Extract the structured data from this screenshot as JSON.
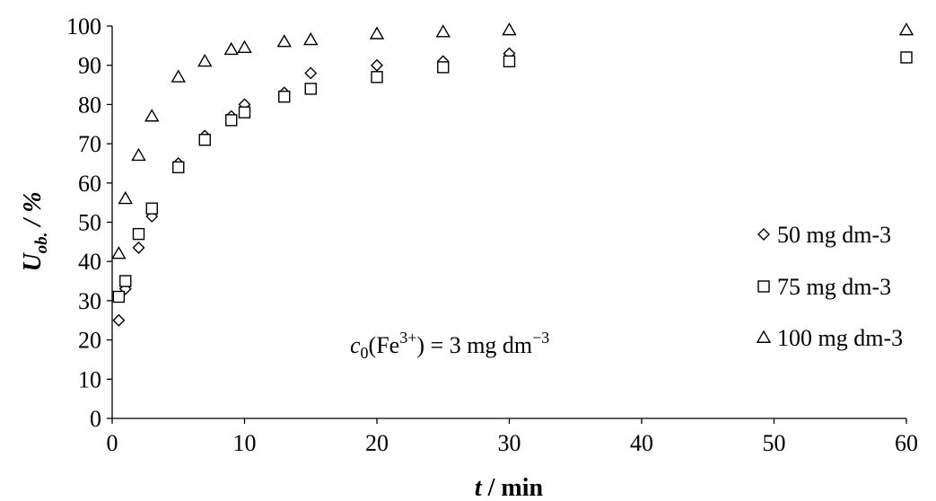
{
  "chart_data": {
    "type": "scatter",
    "xlabel": {
      "main": "t",
      "rest": " / min"
    },
    "ylabel": {
      "main": "U",
      "sub": "ob.",
      "rest": " / %"
    },
    "xlim": [
      0,
      60
    ],
    "ylim": [
      0,
      100
    ],
    "xticks": [
      "0",
      "10",
      "20",
      "30",
      "40",
      "50",
      "60"
    ],
    "yticks": [
      "0",
      "10",
      "20",
      "30",
      "40",
      "50",
      "60",
      "70",
      "80",
      "90",
      "100"
    ],
    "grid": false,
    "legend_position": "right",
    "annotation": {
      "c": "c",
      "sub0": "0",
      "open": "(Fe",
      "charge": "3+",
      "close": ") = 3 mg dm",
      "exp": "−3"
    },
    "series": [
      {
        "name": "50 mg dm-3",
        "marker": "diamond",
        "x": [
          0.5,
          1,
          2,
          3,
          5,
          7,
          9,
          10,
          13,
          15,
          20,
          25,
          30,
          60
        ],
        "y": [
          25,
          33,
          43.5,
          51.5,
          65,
          72,
          77,
          80,
          83,
          88,
          90,
          91,
          93,
          92
        ]
      },
      {
        "name": "75 mg dm-3",
        "marker": "square",
        "x": [
          0.5,
          1,
          2,
          3,
          5,
          7,
          9,
          10,
          13,
          15,
          20,
          25,
          30,
          60
        ],
        "y": [
          31,
          35,
          47,
          53.5,
          64,
          71,
          76,
          78,
          82,
          84,
          87,
          89.5,
          91,
          92
        ]
      },
      {
        "name": "100 mg dm-3",
        "marker": "triangle",
        "x": [
          0.5,
          1,
          2,
          3,
          5,
          7,
          9,
          10,
          13,
          15,
          20,
          25,
          30,
          60
        ],
        "y": [
          42,
          56,
          67,
          77,
          87,
          91,
          94,
          94.5,
          96,
          96.5,
          98,
          98.5,
          99,
          99
        ]
      }
    ]
  }
}
